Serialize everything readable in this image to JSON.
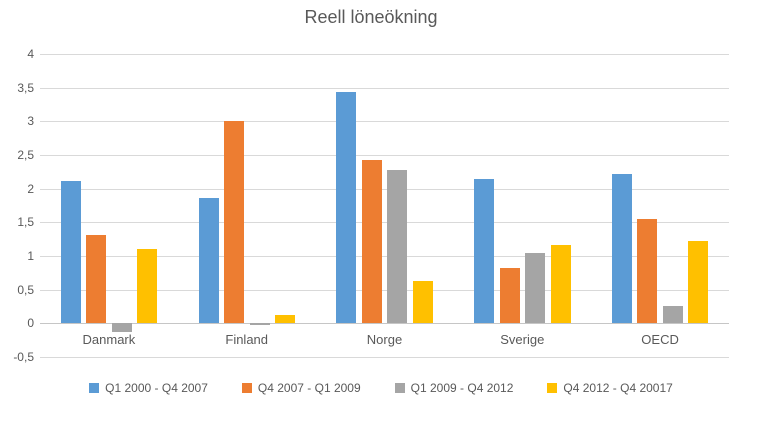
{
  "chart_data": {
    "type": "bar",
    "title": "Reell löneökning",
    "categories": [
      "Danmark",
      "Finland",
      "Norge",
      "Sverige",
      "OECD"
    ],
    "series": [
      {
        "name": "Q1 2000 - Q4 2007",
        "color": "#5B9BD5",
        "values": [
          2.11,
          1.86,
          3.43,
          2.14,
          2.22
        ]
      },
      {
        "name": "Q4 2007 - Q1 2009",
        "color": "#ED7D31",
        "values": [
          1.31,
          3.0,
          2.42,
          0.82,
          1.55
        ]
      },
      {
        "name": "Q1 2009 - Q4 2012",
        "color": "#A5A5A5",
        "values": [
          -0.13,
          -0.02,
          2.28,
          1.05,
          0.26
        ]
      },
      {
        "name": "Q4 2012 - Q4 20017",
        "color": "#FFC000",
        "values": [
          1.1,
          0.12,
          0.63,
          1.16,
          1.22
        ]
      }
    ],
    "xlabel": "",
    "ylabel": "",
    "ylim": [
      -0.5,
      4
    ],
    "ytick_step": 0.5,
    "ytick_labels": [
      "4",
      "3,5",
      "3",
      "2,5",
      "2",
      "1,5",
      "1",
      "0,5",
      "0",
      "-0,5"
    ],
    "grid": true,
    "legend_position": "bottom",
    "text_color": "#595959",
    "gridline_color": "#D9D9D9"
  }
}
